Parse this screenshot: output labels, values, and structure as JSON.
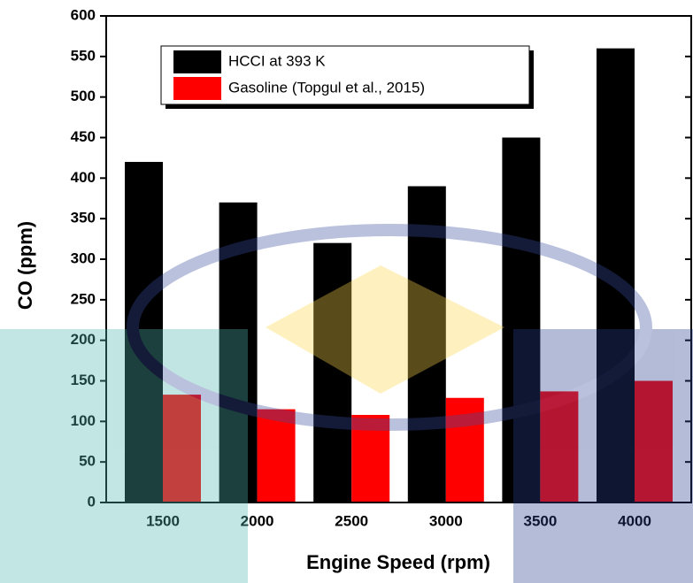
{
  "chart_data": {
    "type": "bar",
    "categories": [
      "1500",
      "2000",
      "2500",
      "3000",
      "3500",
      "4000"
    ],
    "series": [
      {
        "name": "HCCI at 393 K",
        "color": "#000000",
        "values": [
          420,
          370,
          320,
          390,
          450,
          560
        ]
      },
      {
        "name": "Gasoline (Topgul et al., 2015)",
        "color": "#ff0000",
        "values": [
          133,
          115,
          108,
          129,
          137,
          150
        ]
      }
    ],
    "x_label": "Engine Speed (rpm)",
    "y_label": "CO (ppm)",
    "ylim": [
      0,
      600
    ],
    "yticks": [
      0,
      50,
      100,
      150,
      200,
      250,
      300,
      350,
      400,
      450,
      500,
      550,
      600
    ],
    "legend": "upper-left"
  }
}
